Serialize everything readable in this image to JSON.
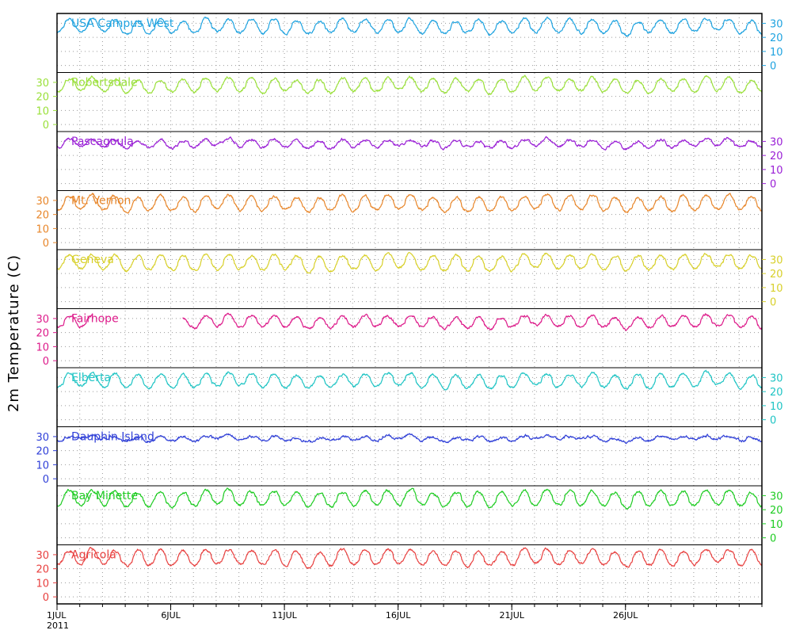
{
  "chart_data": {
    "type": "line",
    "ylabel": "2m Temperature (C)",
    "x_start": "1JUL 2011",
    "xtick_labels": [
      "1JUL",
      "6JUL",
      "11JUL",
      "16JUL",
      "21JUL",
      "26JUL"
    ],
    "xtick_days": [
      1,
      6,
      11,
      16,
      21,
      26
    ],
    "xlim_days": [
      1,
      32
    ],
    "xyear_label": "2011",
    "ylim": [
      -5,
      37
    ],
    "yticks": [
      0,
      10,
      20,
      30
    ],
    "grid": "dotted",
    "panels": [
      {
        "name": "USA Campus West",
        "color": "#1fa3e0",
        "axis_side": "right",
        "mean": 27,
        "amp": 5.5,
        "data_start_day": 1,
        "gaps": []
      },
      {
        "name": "Robertsdale",
        "color": "#9ae03a",
        "axis_side": "left",
        "mean": 27,
        "amp": 5.5,
        "data_start_day": 1,
        "gaps": []
      },
      {
        "name": "Pascagoula",
        "color": "#9a1fd6",
        "axis_side": "right",
        "mean": 28,
        "amp": 3,
        "data_start_day": 1,
        "gaps": []
      },
      {
        "name": "Mt. Vernon",
        "color": "#e8862a",
        "axis_side": "left",
        "mean": 27,
        "amp": 6,
        "data_start_day": 1,
        "gaps": []
      },
      {
        "name": "Geneva",
        "color": "#d8d02a",
        "axis_side": "right",
        "mean": 27,
        "amp": 6,
        "data_start_day": 1,
        "gaps": []
      },
      {
        "name": "Fairhope",
        "color": "#dd1a8a",
        "axis_side": "left",
        "mean": 27,
        "amp": 4.5,
        "data_start_day": 1,
        "gaps": [
          [
            2.6,
            6.5
          ]
        ]
      },
      {
        "name": "Elberta",
        "color": "#1ec4c4",
        "axis_side": "right",
        "mean": 27,
        "amp": 5.5,
        "data_start_day": 1,
        "gaps": []
      },
      {
        "name": "Dauphin Island",
        "color": "#2f3fd8",
        "axis_side": "left",
        "mean": 28.5,
        "amp": 1.5,
        "data_start_day": 1,
        "gaps": []
      },
      {
        "name": "Bay Minette",
        "color": "#1ecc22",
        "axis_side": "right",
        "mean": 27,
        "amp": 6,
        "data_start_day": 1,
        "gaps": []
      },
      {
        "name": "Agricola",
        "color": "#e8403f",
        "axis_side": "left",
        "mean": 27,
        "amp": 6,
        "data_start_day": 1,
        "gaps": []
      }
    ]
  }
}
